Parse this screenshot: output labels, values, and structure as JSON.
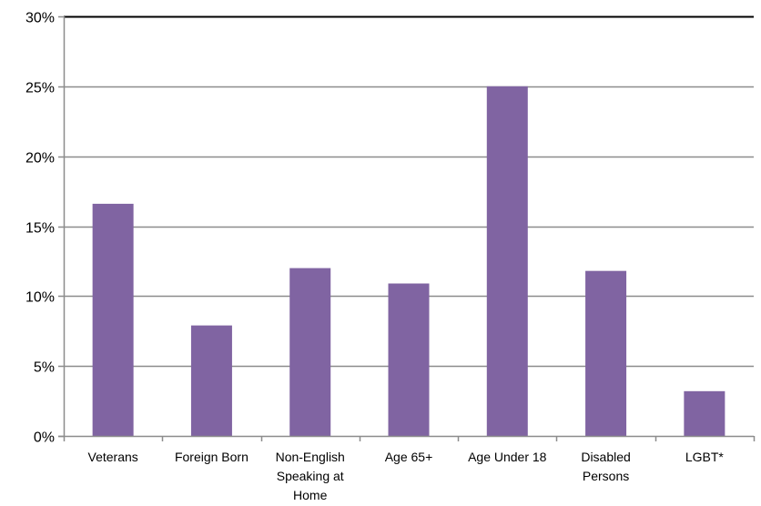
{
  "chart_data": {
    "type": "bar",
    "categories": [
      [
        "Veterans"
      ],
      [
        "Foreign Born"
      ],
      [
        "Non-English",
        "Speaking at",
        "Home"
      ],
      [
        "Age 65+"
      ],
      [
        "Age Under 18"
      ],
      [
        "Disabled",
        "Persons"
      ],
      [
        "LGBT*"
      ]
    ],
    "values": [
      16.6,
      7.9,
      12.0,
      10.9,
      25.0,
      11.8,
      3.2
    ],
    "ylim": [
      0,
      30
    ],
    "yticks": [
      0,
      5,
      10,
      15,
      20,
      25,
      30
    ],
    "ytick_labels": [
      "0%",
      "5%",
      "10%",
      "15%",
      "20%",
      "25%",
      "30%"
    ],
    "title": "",
    "xlabel": "",
    "ylabel": "",
    "grid": true,
    "legend": "none",
    "colors": {
      "bar": "#8064a2",
      "grid": "#8c8c8c",
      "axis": "#8c8c8c",
      "top_border": "#000000"
    }
  }
}
